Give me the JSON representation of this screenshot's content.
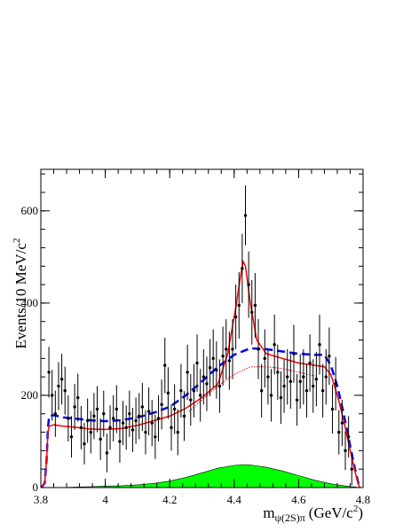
{
  "chart_data": {
    "type": "line",
    "ylabel": "Events/10 MeV/c",
    "ylabel_sup": "2",
    "xlabel": {
      "m": "m",
      "sub": "ψ(2S)π",
      "unit_pre": "(GeV/c",
      "unit_sup": "2",
      "unit_post": ")"
    },
    "xlim": [
      3.8,
      4.8
    ],
    "ylim": [
      0,
      690
    ],
    "x_ticks": [
      3.8,
      4,
      4.2,
      4.4,
      4.6,
      4.8
    ],
    "x_tick_labels": [
      "3.8",
      "4",
      "4.2",
      "4.4",
      "4.6",
      "4.8"
    ],
    "y_ticks": [
      0,
      200,
      400,
      600
    ],
    "y_tick_labels": [
      "0",
      "200",
      "400",
      "600"
    ],
    "colors": {
      "data": "#000000",
      "fit": "#ff0000",
      "nonres": "#ff0000",
      "phsp": "#0000ff",
      "background": "#00ff00"
    },
    "series": [
      {
        "type": "points",
        "style": "data",
        "points": [
          [
            3.825,
            250,
            55
          ],
          [
            3.835,
            200,
            55
          ],
          [
            3.845,
            160,
            50
          ],
          [
            3.855,
            220,
            52
          ],
          [
            3.865,
            235,
            55
          ],
          [
            3.875,
            210,
            52
          ],
          [
            3.885,
            150,
            50
          ],
          [
            3.895,
            110,
            45
          ],
          [
            3.905,
            175,
            50
          ],
          [
            3.915,
            195,
            52
          ],
          [
            3.925,
            130,
            47
          ],
          [
            3.935,
            95,
            45
          ],
          [
            3.945,
            145,
            48
          ],
          [
            3.955,
            120,
            46
          ],
          [
            3.965,
            155,
            50
          ],
          [
            3.975,
            170,
            50
          ],
          [
            3.985,
            105,
            45
          ],
          [
            3.995,
            160,
            50
          ],
          [
            4.005,
            75,
            42
          ],
          [
            4.015,
            130,
            48
          ],
          [
            4.025,
            150,
            50
          ],
          [
            4.035,
            170,
            52
          ],
          [
            4.045,
            100,
            46
          ],
          [
            4.055,
            140,
            48
          ],
          [
            4.065,
            130,
            48
          ],
          [
            4.075,
            160,
            50
          ],
          [
            4.085,
            125,
            48
          ],
          [
            4.095,
            145,
            50
          ],
          [
            4.105,
            155,
            50
          ],
          [
            4.115,
            175,
            52
          ],
          [
            4.125,
            120,
            48
          ],
          [
            4.135,
            165,
            52
          ],
          [
            4.145,
            140,
            50
          ],
          [
            4.155,
            110,
            48
          ],
          [
            4.165,
            150,
            50
          ],
          [
            4.175,
            180,
            54
          ],
          [
            4.185,
            265,
            60
          ],
          [
            4.195,
            205,
            56
          ],
          [
            4.205,
            130,
            50
          ],
          [
            4.215,
            170,
            54
          ],
          [
            4.225,
            120,
            50
          ],
          [
            4.235,
            210,
            58
          ],
          [
            4.245,
            155,
            54
          ],
          [
            4.255,
            250,
            60
          ],
          [
            4.265,
            190,
            56
          ],
          [
            4.275,
            210,
            58
          ],
          [
            4.285,
            270,
            62
          ],
          [
            4.295,
            200,
            57
          ],
          [
            4.305,
            240,
            60
          ],
          [
            4.315,
            225,
            59
          ],
          [
            4.325,
            260,
            62
          ],
          [
            4.335,
            280,
            63
          ],
          [
            4.345,
            255,
            62
          ],
          [
            4.355,
            220,
            58
          ],
          [
            4.365,
            285,
            64
          ],
          [
            4.375,
            300,
            65
          ],
          [
            4.385,
            275,
            63
          ],
          [
            4.395,
            300,
            65
          ],
          [
            4.405,
            370,
            70
          ],
          [
            4.415,
            395,
            72
          ],
          [
            4.425,
            475,
            75
          ],
          [
            4.435,
            590,
            65
          ],
          [
            4.445,
            440,
            72
          ],
          [
            4.455,
            380,
            70
          ],
          [
            4.465,
            395,
            70
          ],
          [
            4.475,
            300,
            65
          ],
          [
            4.485,
            210,
            58
          ],
          [
            4.495,
            280,
            63
          ],
          [
            4.505,
            240,
            60
          ],
          [
            4.515,
            200,
            57
          ],
          [
            4.525,
            310,
            65
          ],
          [
            4.535,
            250,
            60
          ],
          [
            4.545,
            195,
            57
          ],
          [
            4.555,
            220,
            58
          ],
          [
            4.565,
            240,
            60
          ],
          [
            4.575,
            230,
            59
          ],
          [
            4.585,
            290,
            63
          ],
          [
            4.595,
            190,
            56
          ],
          [
            4.605,
            230,
            59
          ],
          [
            4.615,
            240,
            60
          ],
          [
            4.625,
            210,
            58
          ],
          [
            4.635,
            270,
            62
          ],
          [
            4.645,
            220,
            58
          ],
          [
            4.655,
            235,
            59
          ],
          [
            4.665,
            310,
            65
          ],
          [
            4.675,
            210,
            58
          ],
          [
            4.685,
            240,
            60
          ],
          [
            4.695,
            285,
            62
          ],
          [
            4.705,
            170,
            53
          ],
          [
            4.715,
            225,
            58
          ],
          [
            4.725,
            120,
            48
          ],
          [
            4.735,
            140,
            50
          ],
          [
            4.745,
            80,
            42
          ],
          [
            4.755,
            110,
            45
          ],
          [
            4.765,
            40,
            35
          ]
        ]
      },
      {
        "type": "curve",
        "style": "phsp",
        "points": [
          [
            3.802,
            0
          ],
          [
            3.812,
            10
          ],
          [
            3.818,
            60
          ],
          [
            3.822,
            130
          ],
          [
            3.826,
            155
          ],
          [
            3.84,
            157
          ],
          [
            3.87,
            152
          ],
          [
            3.9,
            150
          ],
          [
            3.95,
            146
          ],
          [
            4.0,
            144
          ],
          [
            4.05,
            146
          ],
          [
            4.1,
            152
          ],
          [
            4.15,
            162
          ],
          [
            4.2,
            175
          ],
          [
            4.25,
            200
          ],
          [
            4.3,
            230
          ],
          [
            4.35,
            262
          ],
          [
            4.4,
            288
          ],
          [
            4.45,
            302
          ],
          [
            4.5,
            300
          ],
          [
            4.55,
            295
          ],
          [
            4.6,
            290
          ],
          [
            4.65,
            288
          ],
          [
            4.68,
            288
          ],
          [
            4.7,
            265
          ],
          [
            4.72,
            220
          ],
          [
            4.74,
            160
          ],
          [
            4.76,
            90
          ],
          [
            4.775,
            40
          ],
          [
            4.785,
            10
          ],
          [
            4.79,
            0
          ]
        ]
      },
      {
        "type": "curve",
        "style": "fit",
        "points": [
          [
            3.802,
            0
          ],
          [
            3.812,
            10
          ],
          [
            3.818,
            60
          ],
          [
            3.822,
            120
          ],
          [
            3.826,
            133
          ],
          [
            3.84,
            136
          ],
          [
            3.87,
            133
          ],
          [
            3.9,
            131
          ],
          [
            3.95,
            127
          ],
          [
            4.0,
            126
          ],
          [
            4.05,
            128
          ],
          [
            4.1,
            135
          ],
          [
            4.15,
            145
          ],
          [
            4.2,
            155
          ],
          [
            4.25,
            172
          ],
          [
            4.3,
            195
          ],
          [
            4.35,
            225
          ],
          [
            4.38,
            290
          ],
          [
            4.405,
            390
          ],
          [
            4.42,
            460
          ],
          [
            4.428,
            490
          ],
          [
            4.435,
            480
          ],
          [
            4.45,
            400
          ],
          [
            4.47,
            320
          ],
          [
            4.5,
            290
          ],
          [
            4.55,
            280
          ],
          [
            4.6,
            270
          ],
          [
            4.65,
            265
          ],
          [
            4.68,
            262
          ],
          [
            4.7,
            245
          ],
          [
            4.72,
            200
          ],
          [
            4.74,
            145
          ],
          [
            4.76,
            80
          ],
          [
            4.775,
            35
          ],
          [
            4.785,
            8
          ],
          [
            4.79,
            0
          ]
        ]
      },
      {
        "type": "curve",
        "style": "nonres",
        "points": [
          [
            4.26,
            165
          ],
          [
            4.3,
            190
          ],
          [
            4.35,
            220
          ],
          [
            4.4,
            245
          ],
          [
            4.45,
            262
          ],
          [
            4.5,
            262
          ],
          [
            4.55,
            258
          ],
          [
            4.6,
            250
          ],
          [
            4.65,
            242
          ]
        ]
      },
      {
        "type": "filled",
        "style": "background",
        "points": [
          [
            3.8,
            0
          ],
          [
            3.85,
            0
          ],
          [
            3.9,
            1
          ],
          [
            3.95,
            2
          ],
          [
            4.0,
            3
          ],
          [
            4.05,
            4
          ],
          [
            4.1,
            6
          ],
          [
            4.15,
            9
          ],
          [
            4.2,
            14
          ],
          [
            4.25,
            22
          ],
          [
            4.3,
            32
          ],
          [
            4.35,
            42
          ],
          [
            4.4,
            48
          ],
          [
            4.43,
            50
          ],
          [
            4.45,
            49
          ],
          [
            4.5,
            44
          ],
          [
            4.55,
            36
          ],
          [
            4.6,
            26
          ],
          [
            4.65,
            16
          ],
          [
            4.7,
            8
          ],
          [
            4.75,
            3
          ],
          [
            4.78,
            1
          ],
          [
            4.8,
            0
          ]
        ]
      }
    ]
  }
}
